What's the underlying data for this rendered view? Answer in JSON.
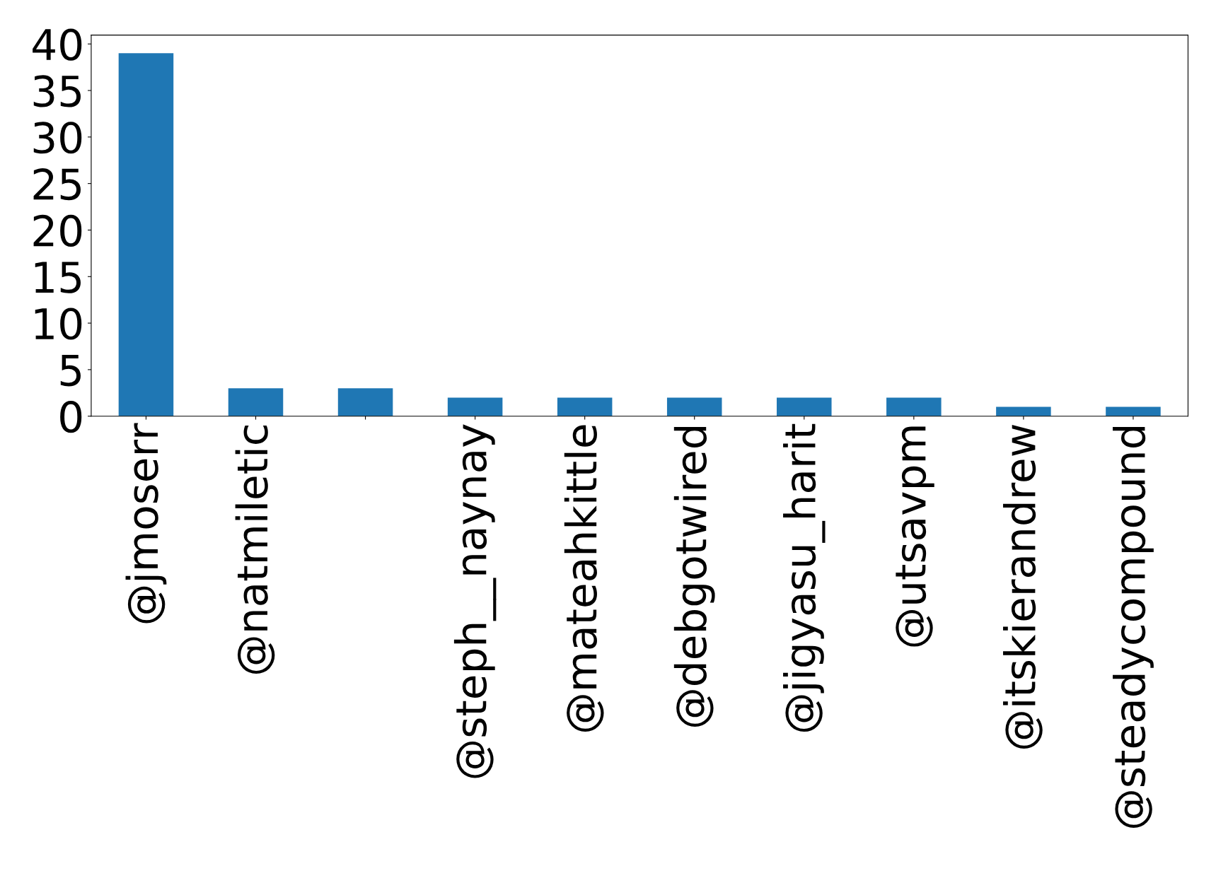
{
  "chart_data": {
    "type": "bar",
    "categories": [
      "@jmoserr",
      "@natmiletic",
      null,
      "@steph__naynay",
      "@mateahkittle",
      "@debgotwired",
      "@jigyasu_harit",
      "@utsavpm",
      "@itskierandrew",
      "@steadycompound"
    ],
    "values": [
      39,
      3,
      3,
      2,
      2,
      2,
      2,
      2,
      1,
      1
    ],
    "color": "#1f77b4",
    "ylim": [
      0,
      40.95
    ],
    "yticks": [
      0,
      5,
      10,
      15,
      20,
      25,
      30,
      35,
      40
    ],
    "grid": false
  }
}
